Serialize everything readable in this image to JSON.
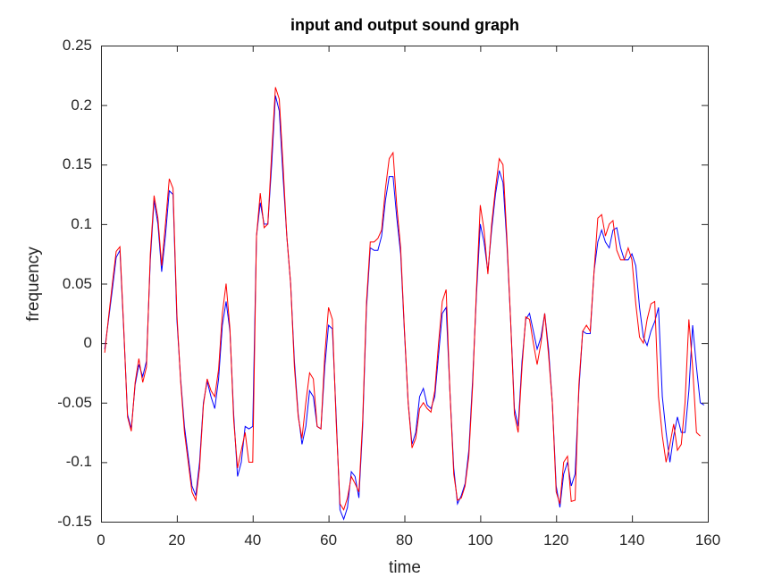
{
  "chart_data": {
    "type": "line",
    "title": "input and output sound graph",
    "xlabel": "time",
    "ylabel": "frequency",
    "xlim": [
      0,
      160
    ],
    "ylim": [
      -0.15,
      0.25
    ],
    "grid": false,
    "legend": null,
    "xticks": [
      "0",
      "20",
      "40",
      "60",
      "80",
      "100",
      "120",
      "140",
      "160"
    ],
    "yticks": [
      "0.25",
      "0.2",
      "0.15",
      "0.1",
      "0.05",
      "0",
      "-0.05",
      "-0.1",
      "-0.15"
    ],
    "x": [
      1,
      2,
      3,
      4,
      5,
      6,
      7,
      8,
      9,
      10,
      11,
      12,
      13,
      14,
      15,
      16,
      17,
      18,
      19,
      20,
      21,
      22,
      23,
      24,
      25,
      26,
      27,
      28,
      29,
      30,
      31,
      32,
      33,
      34,
      35,
      36,
      37,
      38,
      39,
      40,
      41,
      42,
      43,
      44,
      45,
      46,
      47,
      48,
      49,
      50,
      51,
      52,
      53,
      54,
      55,
      56,
      57,
      58,
      59,
      60,
      61,
      62,
      63,
      64,
      65,
      66,
      67,
      68,
      69,
      70,
      71,
      72,
      73,
      74,
      75,
      76,
      77,
      78,
      79,
      80,
      81,
      82,
      83,
      84,
      85,
      86,
      87,
      88,
      89,
      90,
      91,
      92,
      93,
      94,
      95,
      96,
      97,
      98,
      99,
      100,
      101,
      102,
      103,
      104,
      105,
      106,
      107,
      108,
      109,
      110,
      111,
      112,
      113,
      114,
      115,
      116,
      117,
      118,
      119,
      120,
      121,
      122,
      123,
      124,
      125,
      126,
      127,
      128,
      129,
      130,
      131,
      132,
      133,
      134,
      135,
      136,
      137,
      138,
      139,
      140,
      141,
      142,
      143,
      144,
      145,
      146,
      147,
      148,
      149,
      150,
      151,
      152,
      153,
      154,
      155,
      156,
      157,
      158,
      159,
      160
    ],
    "series": [
      {
        "name": "input",
        "color": "#0000ff",
        "values": [
          -0.005,
          0.02,
          0.045,
          0.072,
          0.078,
          0.01,
          -0.06,
          -0.072,
          -0.035,
          -0.018,
          -0.028,
          -0.015,
          0.07,
          0.12,
          0.1,
          0.06,
          0.09,
          0.128,
          0.125,
          0.02,
          -0.03,
          -0.07,
          -0.095,
          -0.12,
          -0.128,
          -0.1,
          -0.05,
          -0.032,
          -0.045,
          -0.055,
          -0.03,
          0.015,
          0.035,
          0.01,
          -0.06,
          -0.112,
          -0.1,
          -0.07,
          -0.072,
          -0.07,
          0.09,
          0.118,
          0.1,
          0.1,
          0.15,
          0.208,
          0.195,
          0.14,
          0.09,
          0.05,
          -0.015,
          -0.06,
          -0.085,
          -0.07,
          -0.04,
          -0.045,
          -0.07,
          -0.072,
          -0.02,
          0.015,
          0.012,
          -0.06,
          -0.14,
          -0.148,
          -0.138,
          -0.108,
          -0.112,
          -0.13,
          -0.07,
          0.03,
          0.08,
          0.078,
          0.078,
          0.09,
          0.12,
          0.14,
          0.14,
          0.105,
          0.075,
          0.01,
          -0.05,
          -0.085,
          -0.075,
          -0.045,
          -0.038,
          -0.052,
          -0.055,
          -0.045,
          -0.01,
          0.025,
          0.03,
          -0.04,
          -0.105,
          -0.135,
          -0.128,
          -0.118,
          -0.09,
          -0.03,
          0.04,
          0.1,
          0.085,
          0.06,
          0.095,
          0.125,
          0.145,
          0.135,
          0.085,
          0.02,
          -0.055,
          -0.07,
          -0.015,
          0.02,
          0.025,
          0.01,
          -0.005,
          0.005,
          0.025,
          -0.005,
          -0.05,
          -0.12,
          -0.138,
          -0.11,
          -0.1,
          -0.12,
          -0.11,
          -0.04,
          0.01,
          0.008,
          0.008,
          0.06,
          0.085,
          0.095,
          0.085,
          0.08,
          0.095,
          0.097,
          0.08,
          0.07,
          0.07,
          0.075,
          0.065,
          0.03,
          0.005,
          -0.002,
          0.01,
          0.018,
          0.03,
          -0.045,
          -0.075,
          -0.1,
          -0.078,
          -0.062,
          -0.075,
          -0.075,
          -0.04,
          0.015,
          -0.02,
          -0.05,
          -0.052
        ]
      },
      {
        "name": "output",
        "color": "#ff0000",
        "values": [
          -0.008,
          0.022,
          0.05,
          0.077,
          0.081,
          0.012,
          -0.062,
          -0.074,
          -0.033,
          -0.013,
          -0.033,
          -0.02,
          0.075,
          0.124,
          0.105,
          0.065,
          0.1,
          0.138,
          0.13,
          0.025,
          -0.032,
          -0.075,
          -0.1,
          -0.125,
          -0.132,
          -0.105,
          -0.052,
          -0.03,
          -0.04,
          -0.045,
          -0.022,
          0.025,
          0.05,
          0.012,
          -0.065,
          -0.105,
          -0.09,
          -0.075,
          -0.1,
          -0.1,
          0.09,
          0.126,
          0.097,
          0.1,
          0.16,
          0.215,
          0.205,
          0.15,
          0.09,
          0.05,
          -0.02,
          -0.062,
          -0.08,
          -0.05,
          -0.025,
          -0.03,
          -0.07,
          -0.072,
          -0.01,
          0.03,
          0.02,
          -0.065,
          -0.135,
          -0.14,
          -0.13,
          -0.112,
          -0.118,
          -0.125,
          -0.065,
          0.035,
          0.085,
          0.085,
          0.088,
          0.095,
          0.13,
          0.155,
          0.16,
          0.115,
          0.08,
          0.012,
          -0.05,
          -0.088,
          -0.08,
          -0.055,
          -0.05,
          -0.055,
          -0.058,
          -0.04,
          0.0,
          0.035,
          0.045,
          -0.04,
          -0.11,
          -0.132,
          -0.13,
          -0.12,
          -0.095,
          -0.035,
          0.045,
          0.116,
          0.095,
          0.058,
          0.1,
          0.13,
          0.155,
          0.15,
          0.09,
          0.02,
          -0.06,
          -0.075,
          -0.02,
          0.022,
          0.02,
          0.0,
          -0.018,
          0.0,
          0.025,
          -0.01,
          -0.05,
          -0.125,
          -0.135,
          -0.1,
          -0.095,
          -0.133,
          -0.132,
          -0.035,
          0.01,
          0.015,
          0.01,
          0.06,
          0.105,
          0.108,
          0.09,
          0.1,
          0.103,
          0.078,
          0.07,
          0.07,
          0.08,
          0.07,
          0.033,
          0.005,
          0.0,
          0.02,
          0.033,
          0.035,
          -0.045,
          -0.078,
          -0.1,
          -0.085,
          -0.068,
          -0.09,
          -0.085,
          -0.05,
          0.02,
          -0.02,
          -0.075,
          -0.078
        ]
      }
    ]
  }
}
